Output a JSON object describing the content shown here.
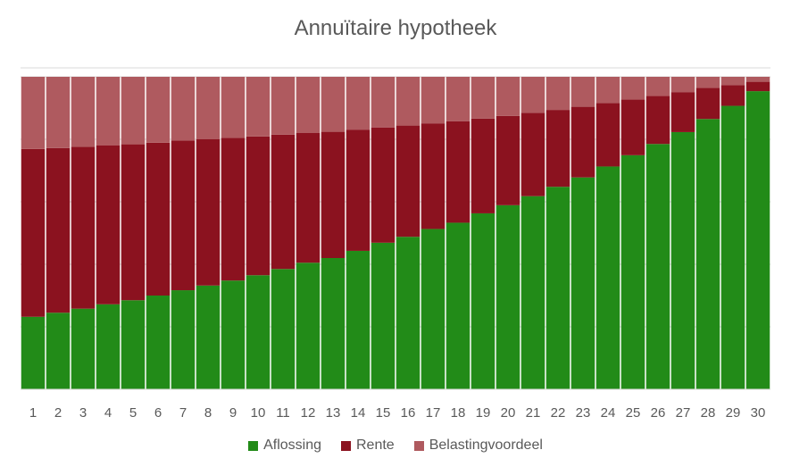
{
  "chart_data": {
    "type": "bar",
    "stacked": "percent",
    "title": "Annuïtaire hypotheek",
    "xlabel": "",
    "ylabel": "",
    "ylim": [
      0,
      100
    ],
    "grid": true,
    "legend_position": "bottom",
    "categories": [
      "1",
      "2",
      "3",
      "4",
      "5",
      "6",
      "7",
      "8",
      "9",
      "10",
      "11",
      "12",
      "13",
      "14",
      "15",
      "16",
      "17",
      "18",
      "19",
      "20",
      "21",
      "22",
      "23",
      "24",
      "25",
      "26",
      "27",
      "28",
      "29",
      "30"
    ],
    "series": [
      {
        "name": "Aflossing",
        "color": "#228b18",
        "values": [
          23.2,
          24.5,
          25.8,
          27.2,
          28.5,
          30.0,
          31.7,
          33.2,
          34.8,
          36.5,
          38.5,
          40.5,
          42.0,
          44.3,
          46.9,
          48.8,
          51.3,
          53.3,
          56.3,
          58.9,
          61.8,
          64.8,
          67.8,
          71.3,
          74.9,
          78.5,
          82.3,
          86.5,
          90.7,
          95.4
        ]
      },
      {
        "name": "Rente",
        "color": "#8b121f",
        "values": [
          53.7,
          52.7,
          51.8,
          50.8,
          49.9,
          48.9,
          47.9,
          46.8,
          45.7,
          44.4,
          43.0,
          41.5,
          40.4,
          38.8,
          36.9,
          35.6,
          33.8,
          32.5,
          30.3,
          28.6,
          26.7,
          24.6,
          22.6,
          20.3,
          17.8,
          15.4,
          12.8,
          10.0,
          6.6,
          3.0
        ]
      },
      {
        "name": "Belastingvoordeel",
        "color": "#af5a5f",
        "values": [
          23.1,
          22.8,
          22.4,
          22.0,
          21.6,
          21.1,
          20.4,
          20.0,
          19.5,
          19.1,
          18.5,
          18.0,
          17.6,
          16.9,
          16.2,
          15.6,
          14.9,
          14.2,
          13.4,
          12.5,
          11.5,
          10.6,
          9.6,
          8.4,
          7.3,
          6.1,
          4.9,
          3.5,
          2.7,
          1.6
        ]
      }
    ]
  }
}
